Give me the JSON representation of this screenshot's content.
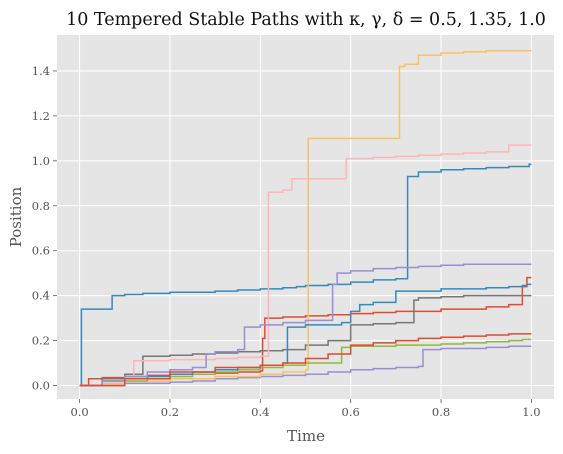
{
  "chart_data": {
    "type": "line",
    "title": "10 Tempered Stable Paths with κ, γ, δ = 0.5, 1.35, 1.0",
    "xlabel": "Time",
    "ylabel": "Position",
    "xlim": [
      -0.05,
      1.05
    ],
    "ylim": [
      -0.06,
      1.56
    ],
    "x_ticks": [
      0.0,
      0.2,
      0.4,
      0.6,
      0.8,
      1.0
    ],
    "x_tick_labels": [
      "0.0",
      "0.2",
      "0.4",
      "0.6",
      "0.8",
      "1.0"
    ],
    "y_ticks": [
      0.0,
      0.2,
      0.4,
      0.6,
      0.8,
      1.0,
      1.2,
      1.4
    ],
    "y_tick_labels": [
      "0.0",
      "0.2",
      "0.4",
      "0.6",
      "0.8",
      "1.0",
      "1.2",
      "1.4"
    ],
    "grid": true,
    "background": "#e5e5e5",
    "step": "post",
    "series": [
      {
        "color": "#348abd",
        "x": [
          0,
          0.004,
          0.07,
          0.072,
          0.1,
          0.14,
          0.2,
          0.3,
          0.35,
          0.4,
          0.45,
          0.48,
          0.5,
          0.55,
          0.6,
          0.65,
          0.7,
          0.726,
          0.75,
          0.8,
          0.85,
          0.9,
          0.95,
          0.995,
          1.0
        ],
        "y": [
          0,
          0.34,
          0.34,
          0.4,
          0.405,
          0.41,
          0.415,
          0.42,
          0.425,
          0.43,
          0.435,
          0.44,
          0.445,
          0.45,
          0.46,
          0.47,
          0.475,
          0.93,
          0.95,
          0.96,
          0.965,
          0.97,
          0.975,
          0.985,
          0.985
        ]
      },
      {
        "color": "#e24a33",
        "x": [
          0,
          0.02,
          0.05,
          0.1,
          0.15,
          0.2,
          0.3,
          0.35,
          0.4,
          0.405,
          0.41,
          0.45,
          0.5,
          0.55,
          0.6,
          0.65,
          0.7,
          0.8,
          0.9,
          0.95,
          0.98,
          0.99,
          1.0
        ],
        "y": [
          0,
          0.03,
          0.035,
          0.04,
          0.045,
          0.05,
          0.055,
          0.06,
          0.065,
          0.21,
          0.3,
          0.305,
          0.31,
          0.315,
          0.32,
          0.325,
          0.33,
          0.34,
          0.35,
          0.36,
          0.44,
          0.48,
          0.48
        ]
      },
      {
        "color": "#988ed5",
        "x": [
          0,
          0.1,
          0.2,
          0.25,
          0.3,
          0.35,
          0.4,
          0.45,
          0.5,
          0.55,
          0.6,
          0.65,
          0.7,
          0.75,
          0.76,
          0.8,
          0.9,
          0.95,
          1.0
        ],
        "y": [
          0,
          0.01,
          0.015,
          0.02,
          0.03,
          0.035,
          0.04,
          0.045,
          0.05,
          0.06,
          0.07,
          0.075,
          0.08,
          0.085,
          0.16,
          0.165,
          0.17,
          0.175,
          0.175
        ]
      },
      {
        "color": "#777777",
        "x": [
          0,
          0.05,
          0.1,
          0.14,
          0.2,
          0.25,
          0.3,
          0.35,
          0.4,
          0.45,
          0.5,
          0.55,
          0.6,
          0.65,
          0.7,
          0.74,
          0.75,
          0.8,
          0.85,
          0.9,
          1.0
        ],
        "y": [
          0,
          0.03,
          0.05,
          0.13,
          0.135,
          0.14,
          0.145,
          0.15,
          0.155,
          0.16,
          0.18,
          0.2,
          0.27,
          0.275,
          0.28,
          0.38,
          0.39,
          0.395,
          0.4,
          0.4,
          0.4
        ]
      },
      {
        "color": "#fbc15e",
        "x": [
          0,
          0.05,
          0.1,
          0.2,
          0.3,
          0.4,
          0.45,
          0.5,
          0.506,
          0.55,
          0.6,
          0.65,
          0.7,
          0.708,
          0.72,
          0.75,
          0.8,
          0.85,
          0.9,
          1.0
        ],
        "y": [
          0,
          0.01,
          0.02,
          0.03,
          0.04,
          0.05,
          0.06,
          0.07,
          1.1,
          1.1,
          1.1,
          1.1,
          1.1,
          1.42,
          1.43,
          1.47,
          1.48,
          1.485,
          1.49,
          1.49
        ]
      },
      {
        "color": "#8eba42",
        "x": [
          0,
          0.1,
          0.15,
          0.2,
          0.25,
          0.3,
          0.35,
          0.4,
          0.45,
          0.5,
          0.58,
          0.6,
          0.7,
          0.8,
          0.85,
          0.9,
          0.95,
          0.98,
          1.0
        ],
        "y": [
          0,
          0.02,
          0.03,
          0.04,
          0.05,
          0.06,
          0.07,
          0.08,
          0.09,
          0.1,
          0.17,
          0.175,
          0.18,
          0.185,
          0.19,
          0.195,
          0.2,
          0.205,
          0.205
        ]
      },
      {
        "color": "#ffb5b8",
        "x": [
          0,
          0.05,
          0.1,
          0.12,
          0.2,
          0.3,
          0.35,
          0.4,
          0.418,
          0.45,
          0.47,
          0.5,
          0.55,
          0.59,
          0.65,
          0.7,
          0.75,
          0.8,
          0.85,
          0.9,
          0.95,
          1.0
        ],
        "y": [
          0,
          0.02,
          0.03,
          0.11,
          0.115,
          0.12,
          0.125,
          0.13,
          0.86,
          0.87,
          0.92,
          0.92,
          0.92,
          1.01,
          1.015,
          1.02,
          1.025,
          1.03,
          1.035,
          1.04,
          1.07,
          1.07
        ]
      },
      {
        "color": "#348abd",
        "x": [
          0,
          0.05,
          0.1,
          0.15,
          0.2,
          0.25,
          0.3,
          0.35,
          0.4,
          0.45,
          0.46,
          0.5,
          0.55,
          0.58,
          0.6,
          0.62,
          0.65,
          0.7,
          0.8,
          0.9,
          0.95,
          0.98,
          0.99,
          1.0
        ],
        "y": [
          0,
          0.02,
          0.03,
          0.04,
          0.05,
          0.06,
          0.07,
          0.08,
          0.09,
          0.1,
          0.26,
          0.27,
          0.27,
          0.28,
          0.33,
          0.36,
          0.37,
          0.42,
          0.43,
          0.435,
          0.44,
          0.445,
          0.45,
          0.45
        ]
      },
      {
        "color": "#988ed5",
        "x": [
          0,
          0.05,
          0.1,
          0.15,
          0.2,
          0.25,
          0.28,
          0.3,
          0.35,
          0.365,
          0.4,
          0.45,
          0.5,
          0.56,
          0.57,
          0.6,
          0.65,
          0.7,
          0.75,
          0.8,
          0.85,
          0.9,
          0.95,
          1.0
        ],
        "y": [
          0,
          0.02,
          0.04,
          0.06,
          0.07,
          0.08,
          0.14,
          0.15,
          0.16,
          0.26,
          0.27,
          0.28,
          0.29,
          0.45,
          0.5,
          0.51,
          0.52,
          0.525,
          0.53,
          0.535,
          0.54,
          0.54,
          0.54,
          0.54
        ]
      },
      {
        "color": "#e24a33",
        "x": [
          0,
          0.1,
          0.2,
          0.3,
          0.4,
          0.45,
          0.5,
          0.55,
          0.6,
          0.65,
          0.7,
          0.75,
          0.8,
          0.85,
          0.9,
          0.95,
          1.0
        ],
        "y": [
          0,
          0.03,
          0.06,
          0.08,
          0.09,
          0.1,
          0.12,
          0.14,
          0.18,
          0.19,
          0.2,
          0.21,
          0.215,
          0.22,
          0.225,
          0.23,
          0.23
        ]
      }
    ]
  }
}
